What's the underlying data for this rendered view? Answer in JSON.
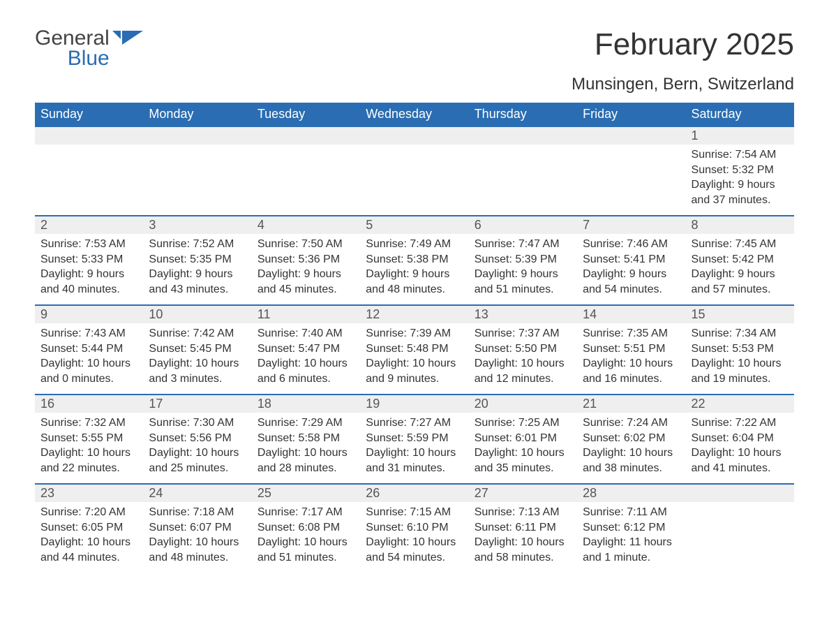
{
  "logo": {
    "text_general": "General",
    "text_blue": "Blue"
  },
  "colors": {
    "header_bg": "#2a6db2",
    "header_text": "#ffffff",
    "daybar_bg": "#efefef",
    "daybar_border": "#2a6db2",
    "body_bg": "#ffffff",
    "text": "#333333",
    "logo_gray": "#444444",
    "logo_blue": "#2a6db2"
  },
  "header": {
    "month_title": "February 2025",
    "location": "Munsingen, Bern, Switzerland"
  },
  "weekday_labels": [
    "Sunday",
    "Monday",
    "Tuesday",
    "Wednesday",
    "Thursday",
    "Friday",
    "Saturday"
  ],
  "labels": {
    "sunrise_prefix": "Sunrise: ",
    "sunset_prefix": "Sunset: ",
    "daylight_prefix": "Daylight: "
  },
  "weeks": [
    [
      null,
      null,
      null,
      null,
      null,
      null,
      {
        "n": "1",
        "sunrise": "7:54 AM",
        "sunset": "5:32 PM",
        "daylight": "9 hours and 37 minutes."
      }
    ],
    [
      {
        "n": "2",
        "sunrise": "7:53 AM",
        "sunset": "5:33 PM",
        "daylight": "9 hours and 40 minutes."
      },
      {
        "n": "3",
        "sunrise": "7:52 AM",
        "sunset": "5:35 PM",
        "daylight": "9 hours and 43 minutes."
      },
      {
        "n": "4",
        "sunrise": "7:50 AM",
        "sunset": "5:36 PM",
        "daylight": "9 hours and 45 minutes."
      },
      {
        "n": "5",
        "sunrise": "7:49 AM",
        "sunset": "5:38 PM",
        "daylight": "9 hours and 48 minutes."
      },
      {
        "n": "6",
        "sunrise": "7:47 AM",
        "sunset": "5:39 PM",
        "daylight": "9 hours and 51 minutes."
      },
      {
        "n": "7",
        "sunrise": "7:46 AM",
        "sunset": "5:41 PM",
        "daylight": "9 hours and 54 minutes."
      },
      {
        "n": "8",
        "sunrise": "7:45 AM",
        "sunset": "5:42 PM",
        "daylight": "9 hours and 57 minutes."
      }
    ],
    [
      {
        "n": "9",
        "sunrise": "7:43 AM",
        "sunset": "5:44 PM",
        "daylight": "10 hours and 0 minutes."
      },
      {
        "n": "10",
        "sunrise": "7:42 AM",
        "sunset": "5:45 PM",
        "daylight": "10 hours and 3 minutes."
      },
      {
        "n": "11",
        "sunrise": "7:40 AM",
        "sunset": "5:47 PM",
        "daylight": "10 hours and 6 minutes."
      },
      {
        "n": "12",
        "sunrise": "7:39 AM",
        "sunset": "5:48 PM",
        "daylight": "10 hours and 9 minutes."
      },
      {
        "n": "13",
        "sunrise": "7:37 AM",
        "sunset": "5:50 PM",
        "daylight": "10 hours and 12 minutes."
      },
      {
        "n": "14",
        "sunrise": "7:35 AM",
        "sunset": "5:51 PM",
        "daylight": "10 hours and 16 minutes."
      },
      {
        "n": "15",
        "sunrise": "7:34 AM",
        "sunset": "5:53 PM",
        "daylight": "10 hours and 19 minutes."
      }
    ],
    [
      {
        "n": "16",
        "sunrise": "7:32 AM",
        "sunset": "5:55 PM",
        "daylight": "10 hours and 22 minutes."
      },
      {
        "n": "17",
        "sunrise": "7:30 AM",
        "sunset": "5:56 PM",
        "daylight": "10 hours and 25 minutes."
      },
      {
        "n": "18",
        "sunrise": "7:29 AM",
        "sunset": "5:58 PM",
        "daylight": "10 hours and 28 minutes."
      },
      {
        "n": "19",
        "sunrise": "7:27 AM",
        "sunset": "5:59 PM",
        "daylight": "10 hours and 31 minutes."
      },
      {
        "n": "20",
        "sunrise": "7:25 AM",
        "sunset": "6:01 PM",
        "daylight": "10 hours and 35 minutes."
      },
      {
        "n": "21",
        "sunrise": "7:24 AM",
        "sunset": "6:02 PM",
        "daylight": "10 hours and 38 minutes."
      },
      {
        "n": "22",
        "sunrise": "7:22 AM",
        "sunset": "6:04 PM",
        "daylight": "10 hours and 41 minutes."
      }
    ],
    [
      {
        "n": "23",
        "sunrise": "7:20 AM",
        "sunset": "6:05 PM",
        "daylight": "10 hours and 44 minutes."
      },
      {
        "n": "24",
        "sunrise": "7:18 AM",
        "sunset": "6:07 PM",
        "daylight": "10 hours and 48 minutes."
      },
      {
        "n": "25",
        "sunrise": "7:17 AM",
        "sunset": "6:08 PM",
        "daylight": "10 hours and 51 minutes."
      },
      {
        "n": "26",
        "sunrise": "7:15 AM",
        "sunset": "6:10 PM",
        "daylight": "10 hours and 54 minutes."
      },
      {
        "n": "27",
        "sunrise": "7:13 AM",
        "sunset": "6:11 PM",
        "daylight": "10 hours and 58 minutes."
      },
      {
        "n": "28",
        "sunrise": "7:11 AM",
        "sunset": "6:12 PM",
        "daylight": "11 hours and 1 minute."
      },
      null
    ]
  ]
}
